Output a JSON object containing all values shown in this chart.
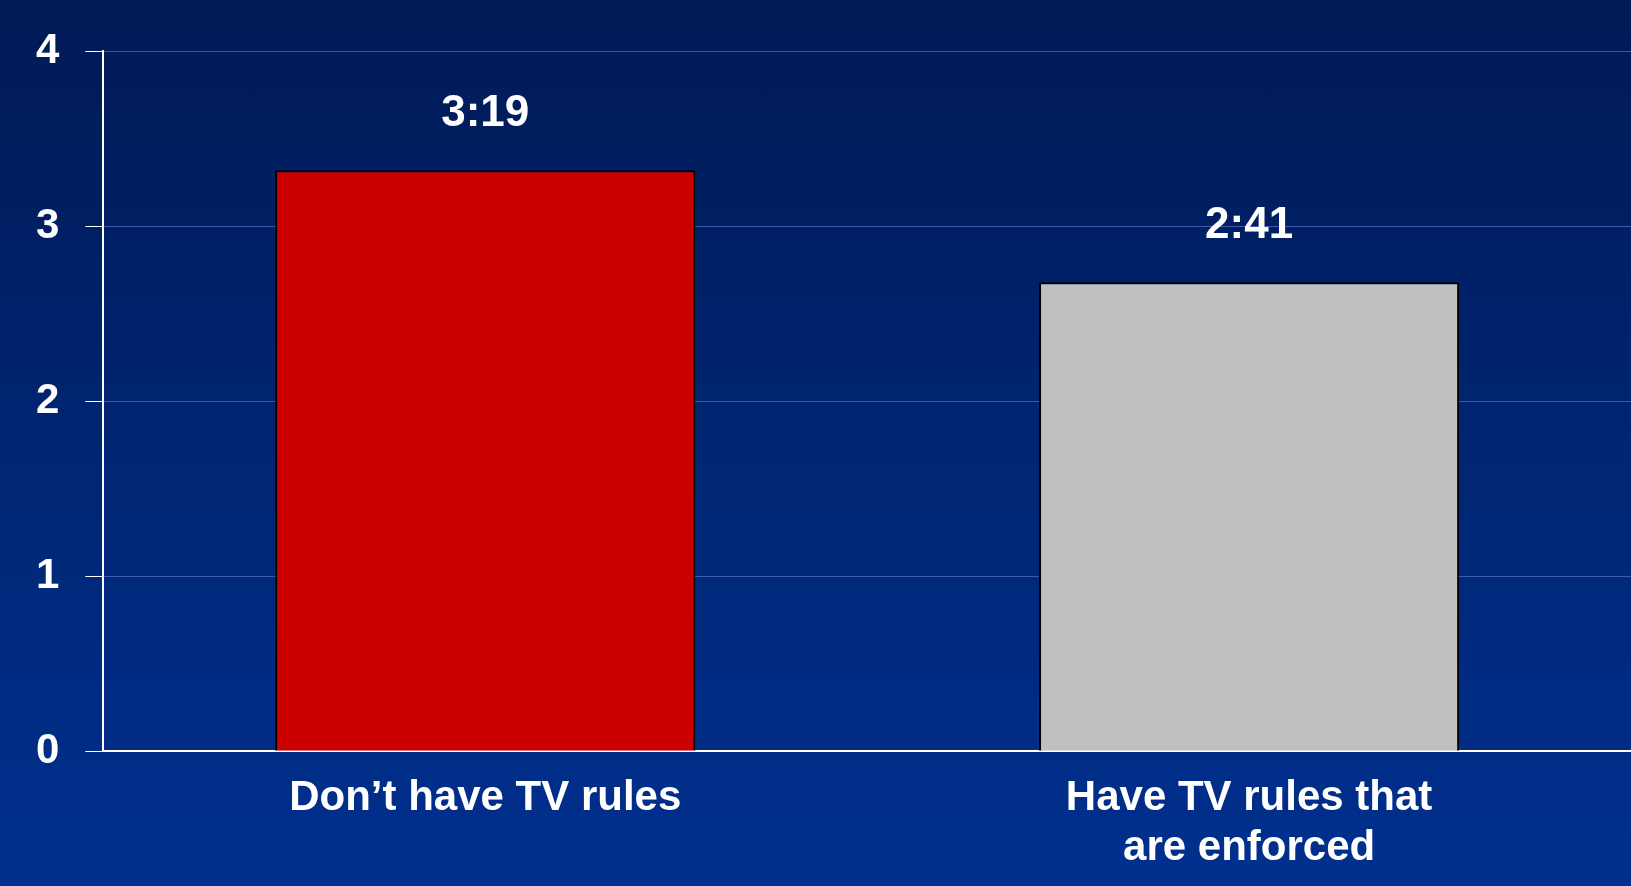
{
  "chart_data": {
    "type": "bar",
    "categories": [
      "Don’t have TV rules",
      "Have TV rules that are enforced"
    ],
    "values": [
      3.32,
      2.68
    ],
    "value_labels": [
      "3:19",
      "2:41"
    ],
    "colors": [
      "#cc0000",
      "#c0c0c0"
    ],
    "ylim": [
      0,
      4
    ],
    "yticks": [
      0,
      1,
      2,
      3,
      4
    ],
    "grid": "y",
    "legend": false
  }
}
